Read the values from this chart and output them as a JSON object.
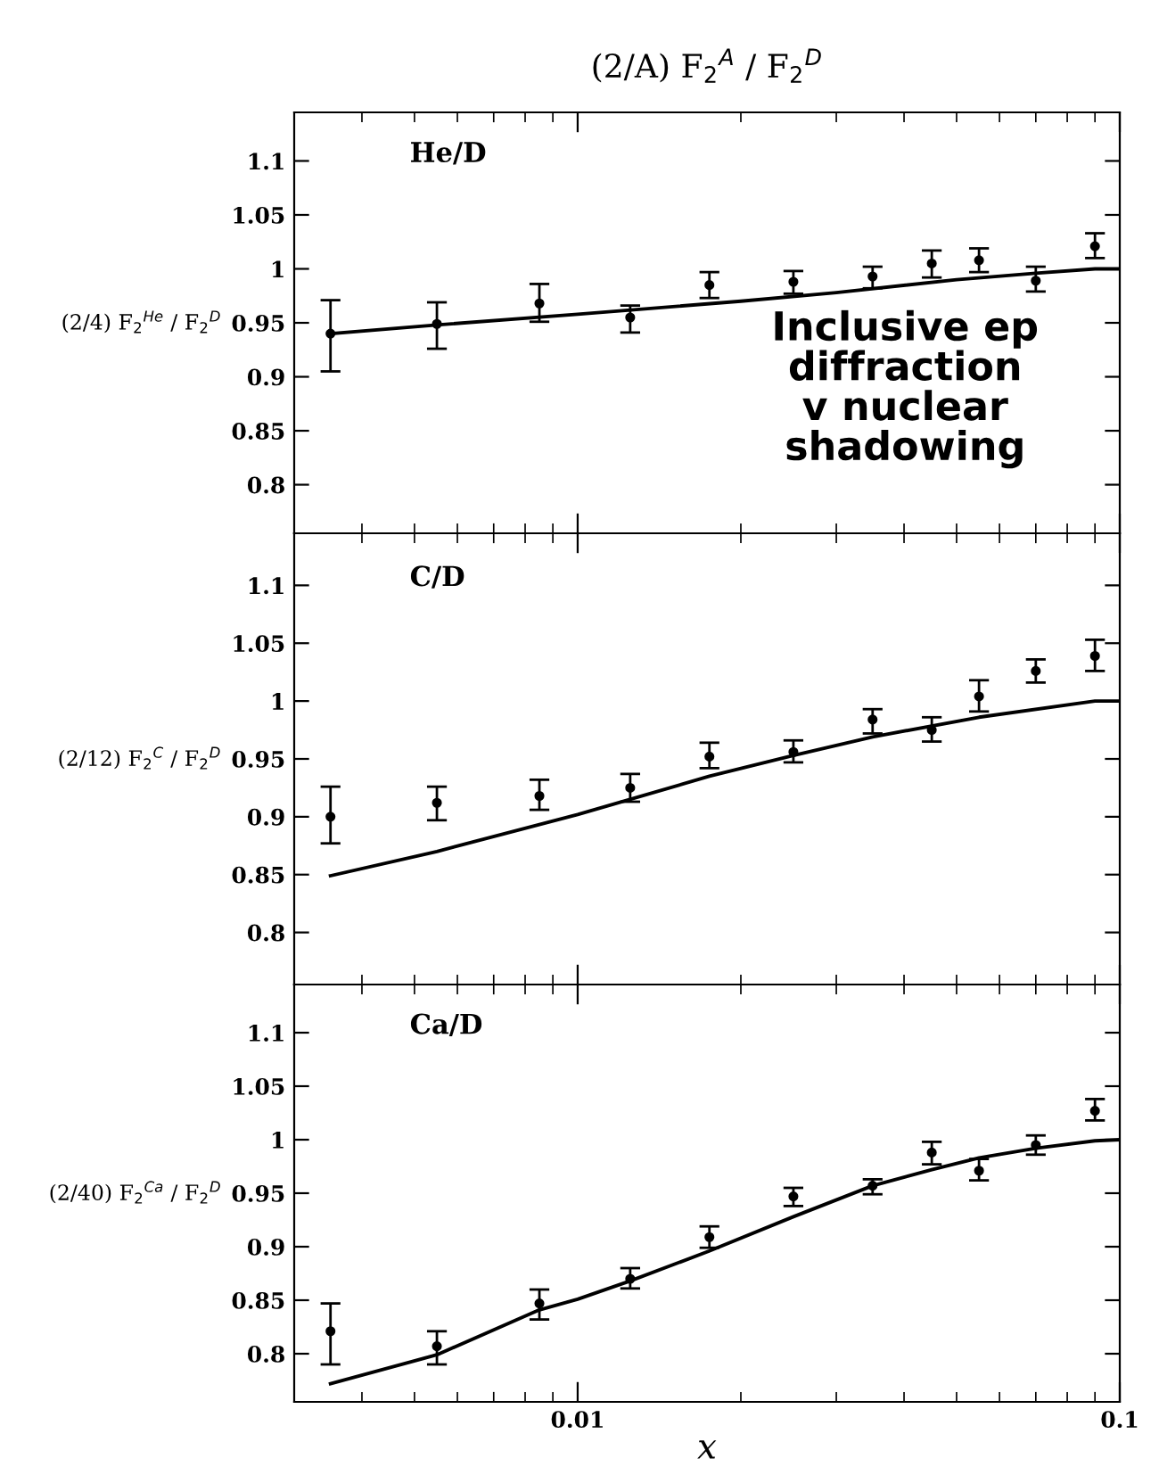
{
  "chart_data": [
    {
      "type": "scatter",
      "title": "(2/A) F$_{2}$$^{A}$ / F$_{2}$$^{D}$",
      "ylabel": "(2/4) F$_{2}$$^{He}$ / F$_{2}$$^{D}$",
      "annotations": [
        "He/D",
        "Inclusive ep\ndiffraction\nv nuclear\nshadowing"
      ],
      "xlim": [
        0.003,
        0.1
      ],
      "ylim": [
        0.755,
        1.145
      ],
      "yticks": [
        0.8,
        0.85,
        0.9,
        0.95,
        1,
        1.05,
        1.1
      ],
      "log": "x",
      "tick_labels": "y",
      "grid": false,
      "legend": false,
      "series": [
        {
          "type": "scatter",
          "color": "#000000",
          "marker": "circle",
          "x": [
            0.0035,
            0.0055,
            0.0085,
            0.0125,
            0.0175,
            0.025,
            0.035,
            0.045,
            0.055,
            0.07,
            0.09
          ],
          "values": [
            0.94,
            0.949,
            0.968,
            0.955,
            0.985,
            0.988,
            0.993,
            1.005,
            1.008,
            0.989,
            1.021
          ],
          "errors": [
            [
              0.905,
              0.971
            ],
            [
              0.926,
              0.969
            ],
            [
              0.951,
              0.986
            ],
            [
              0.941,
              0.966
            ],
            [
              0.973,
              0.997
            ],
            [
              0.977,
              0.998
            ],
            [
              0.982,
              1.002
            ],
            [
              0.992,
              1.017
            ],
            [
              0.997,
              1.019
            ],
            [
              0.979,
              1.002
            ],
            [
              1.01,
              1.033
            ]
          ]
        },
        {
          "type": "line",
          "color": "#000000",
          "line_style": "solid",
          "marker": "none",
          "x": [
            0.0035,
            0.0055,
            0.01,
            0.02,
            0.03,
            0.05,
            0.07,
            0.09,
            0.1
          ],
          "values": [
            0.94,
            0.948,
            0.958,
            0.97,
            0.978,
            0.99,
            0.996,
            1.0,
            1.0
          ]
        }
      ]
    },
    {
      "type": "scatter",
      "ylabel": "(2/12) F$_{2}$$^{C}$ / F$_{2}$$^{D}$",
      "annotations": [
        "C/D"
      ],
      "xlim": [
        0.003,
        0.1
      ],
      "ylim": [
        0.755,
        1.145
      ],
      "yticks": [
        0.8,
        0.85,
        0.9,
        0.95,
        1,
        1.05,
        1.1
      ],
      "log": "x",
      "tick_labels": "y",
      "grid": false,
      "legend": false,
      "series": [
        {
          "type": "scatter",
          "color": "#000000",
          "marker": "circle",
          "x": [
            0.0035,
            0.0055,
            0.0085,
            0.0125,
            0.0175,
            0.025,
            0.035,
            0.045,
            0.055,
            0.07,
            0.09
          ],
          "values": [
            0.9,
            0.912,
            0.918,
            0.925,
            0.952,
            0.956,
            0.984,
            0.975,
            1.004,
            1.026,
            1.039
          ],
          "errors": [
            [
              0.877,
              0.926
            ],
            [
              0.897,
              0.926
            ],
            [
              0.906,
              0.932
            ],
            [
              0.913,
              0.937
            ],
            [
              0.942,
              0.964
            ],
            [
              0.947,
              0.966
            ],
            [
              0.972,
              0.993
            ],
            [
              0.965,
              0.986
            ],
            [
              0.991,
              1.018
            ],
            [
              1.016,
              1.036
            ],
            [
              1.026,
              1.053
            ]
          ]
        },
        {
          "type": "line",
          "color": "#000000",
          "line_style": "solid",
          "marker": "none",
          "x": [
            0.0035,
            0.0055,
            0.01,
            0.0175,
            0.025,
            0.035,
            0.055,
            0.09,
            0.1
          ],
          "values": [
            0.849,
            0.87,
            0.902,
            0.935,
            0.953,
            0.969,
            0.986,
            1.0,
            1.0
          ]
        }
      ]
    },
    {
      "type": "scatter",
      "xlabel": "x",
      "ylabel": "(2/40) F$_{2}$$^{Ca}$ / F$_{2}$$^{D}$",
      "annotations": [
        "Ca/D"
      ],
      "xlim": [
        0.003,
        0.1
      ],
      "ylim": [
        0.755,
        1.145
      ],
      "xticks": [
        0.01,
        0.1
      ],
      "yticks": [
        0.8,
        0.85,
        0.9,
        0.95,
        1,
        1.05,
        1.1
      ],
      "log": "x",
      "grid": false,
      "legend": false,
      "series": [
        {
          "type": "scatter",
          "color": "#000000",
          "marker": "circle",
          "x": [
            0.0035,
            0.0055,
            0.0085,
            0.0125,
            0.0175,
            0.025,
            0.035,
            0.045,
            0.055,
            0.07,
            0.09
          ],
          "values": [
            0.821,
            0.807,
            0.847,
            0.87,
            0.909,
            0.947,
            0.957,
            0.988,
            0.971,
            0.995,
            1.027
          ],
          "errors": [
            [
              0.79,
              0.847
            ],
            [
              0.79,
              0.821
            ],
            [
              0.832,
              0.86
            ],
            [
              0.861,
              0.88
            ],
            [
              0.899,
              0.919
            ],
            [
              0.938,
              0.955
            ],
            [
              0.949,
              0.963
            ],
            [
              0.977,
              0.998
            ],
            [
              0.962,
              0.982
            ],
            [
              0.986,
              1.004
            ],
            [
              1.018,
              1.038
            ]
          ]
        },
        {
          "type": "line",
          "color": "#000000",
          "line_style": "solid",
          "marker": "none",
          "x": [
            0.0035,
            0.0055,
            0.0085,
            0.01,
            0.0125,
            0.0175,
            0.025,
            0.035,
            0.045,
            0.055,
            0.07,
            0.09,
            0.1
          ],
          "values": [
            0.772,
            0.799,
            0.841,
            0.851,
            0.868,
            0.896,
            0.928,
            0.957,
            0.972,
            0.983,
            0.992,
            0.999,
            1.0
          ]
        }
      ]
    }
  ]
}
